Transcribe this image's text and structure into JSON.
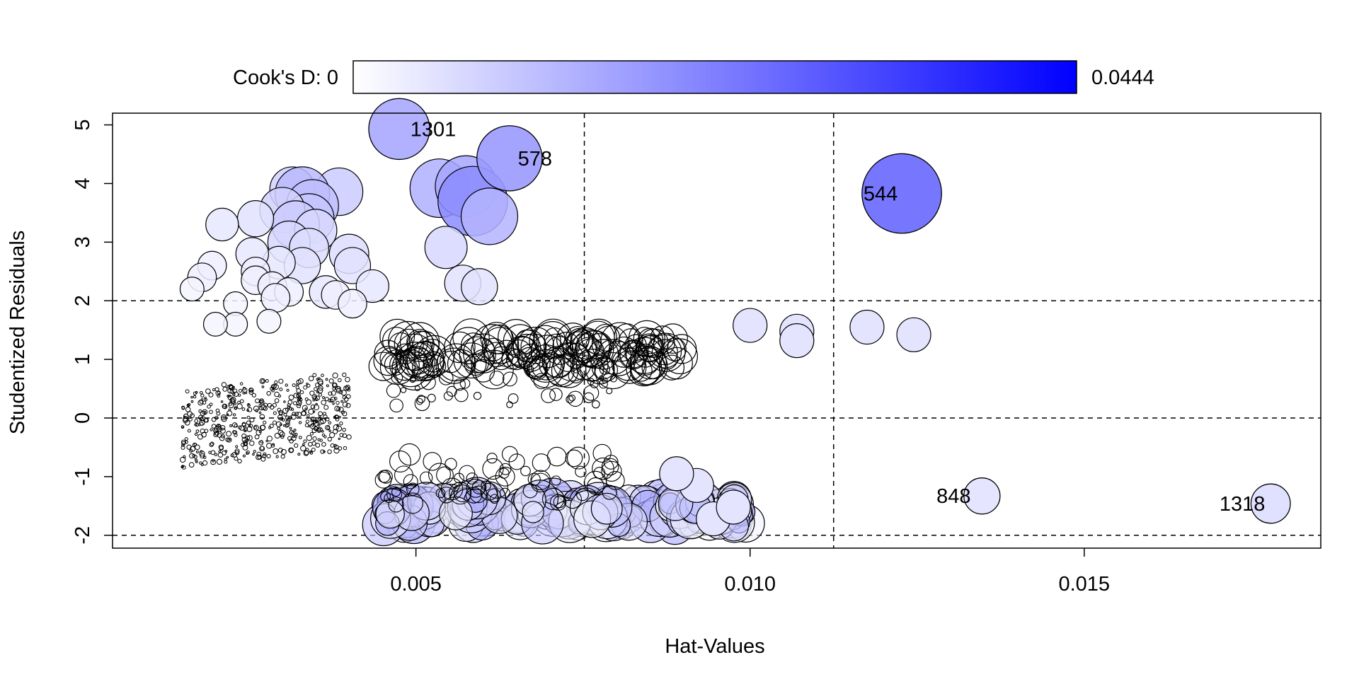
{
  "chart_data": {
    "type": "scatter",
    "title": "",
    "xlabel": "Hat-Values",
    "ylabel": "Studentized Residuals",
    "xlim": [
      0.00046,
      0.01854
    ],
    "ylim": [
      -2.22,
      5.2
    ],
    "x_ticks": [
      0.005,
      0.01,
      0.015
    ],
    "x_tick_labels": [
      "0.005",
      "0.010",
      "0.015"
    ],
    "y_ticks": [
      -2,
      -1,
      0,
      1,
      2,
      3,
      4,
      5
    ],
    "y_tick_labels": [
      "-2",
      "-1",
      "0",
      "1",
      "2",
      "3",
      "4",
      "5"
    ],
    "reference_lines": {
      "horizontal": [
        -2,
        0,
        2
      ],
      "vertical": [
        0.00752,
        0.01125
      ]
    },
    "legend": {
      "label_min": "Cook's D: 0",
      "label_max": "0.0444",
      "min": 0,
      "max": 0.0444,
      "color_low": "#ffffff",
      "color_high": "#0000ff",
      "placement": "top"
    },
    "labeled_points": [
      {
        "label": "1301",
        "hat": 0.00475,
        "rstudent": 4.93,
        "cooks_d": 0.0152
      },
      {
        "label": "578",
        "hat": 0.0064,
        "rstudent": 4.43,
        "cooks_d": 0.0175
      },
      {
        "label": "544",
        "hat": 0.01227,
        "rstudent": 3.83,
        "cooks_d": 0.0265
      },
      {
        "label": "848",
        "hat": 0.01347,
        "rstudent": -1.33,
        "cooks_d": 0.005
      },
      {
        "label": "1318",
        "hat": 0.01779,
        "rstudent": -1.46,
        "cooks_d": 0.006
      }
    ],
    "points": [
      [
        0.00535,
        3.92,
        0.014
      ],
      [
        0.00575,
        3.95,
        0.0155
      ],
      [
        0.00585,
        3.7,
        0.02
      ],
      [
        0.0061,
        3.44,
        0.013
      ],
      [
        0.00545,
        2.91,
        0.007
      ],
      [
        0.0057,
        2.3,
        0.005
      ],
      [
        0.00595,
        2.24,
        0.005
      ],
      [
        0.00385,
        3.86,
        0.009
      ],
      [
        0.00315,
        3.9,
        0.008
      ],
      [
        0.0033,
        3.82,
        0.012
      ],
      [
        0.00345,
        3.62,
        0.011
      ],
      [
        0.0034,
        3.4,
        0.01
      ],
      [
        0.003,
        3.55,
        0.008
      ],
      [
        0.0032,
        3.3,
        0.009
      ],
      [
        0.0035,
        3.2,
        0.007
      ],
      [
        0.0031,
        3.0,
        0.007
      ],
      [
        0.0034,
        2.9,
        0.006
      ],
      [
        0.0026,
        3.4,
        0.005
      ],
      [
        0.0021,
        3.3,
        0.004
      ],
      [
        0.004,
        2.8,
        0.006
      ],
      [
        0.00405,
        2.6,
        0.005
      ],
      [
        0.0033,
        2.6,
        0.005
      ],
      [
        0.00295,
        2.65,
        0.004
      ],
      [
        0.00255,
        2.8,
        0.004
      ],
      [
        0.0026,
        2.5,
        0.003
      ],
      [
        0.00195,
        2.6,
        0.003
      ],
      [
        0.0018,
        2.4,
        0.003
      ],
      [
        0.00165,
        2.2,
        0.002
      ],
      [
        0.0026,
        2.35,
        0.003
      ],
      [
        0.00285,
        2.25,
        0.003
      ],
      [
        0.0031,
        2.15,
        0.003
      ],
      [
        0.00365,
        2.15,
        0.004
      ],
      [
        0.0038,
        2.1,
        0.003
      ],
      [
        0.00435,
        2.25,
        0.004
      ],
      [
        0.00405,
        1.95,
        0.003
      ],
      [
        0.0029,
        2.05,
        0.003
      ],
      [
        0.0023,
        1.95,
        0.002
      ],
      [
        0.0028,
        1.65,
        0.002
      ],
      [
        0.0023,
        1.6,
        0.002
      ],
      [
        0.002,
        1.6,
        0.002
      ]
    ]
  }
}
